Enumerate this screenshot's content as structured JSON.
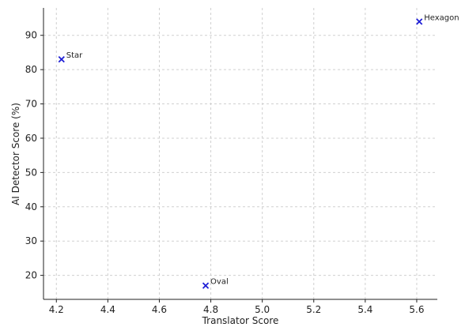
{
  "chart_data": {
    "type": "scatter",
    "xlabel": "Translator Score",
    "ylabel": "AI Detector Score (%)",
    "xlim": [
      4.15,
      5.68
    ],
    "ylim": [
      13,
      98
    ],
    "x_ticks": [
      4.2,
      4.4,
      4.6,
      4.8,
      5.0,
      5.2,
      5.4,
      5.6
    ],
    "y_ticks": [
      20,
      30,
      40,
      50,
      60,
      70,
      80,
      90
    ],
    "grid": true,
    "marker": "x",
    "color": "#1f1fd6",
    "points": [
      {
        "label": "Star",
        "x": 4.22,
        "y": 83
      },
      {
        "label": "Oval",
        "x": 4.78,
        "y": 17
      },
      {
        "label": "Hexagon",
        "x": 5.61,
        "y": 94
      }
    ]
  }
}
